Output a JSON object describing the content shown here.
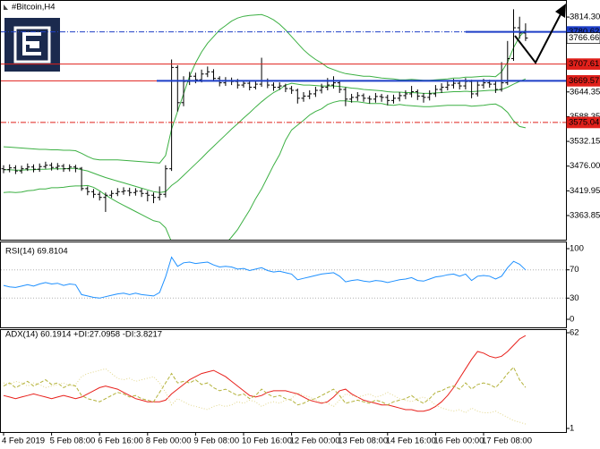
{
  "chart_data": [
    {
      "type": "ohlc",
      "title": "#Bitcoin,H4",
      "color": "#000000",
      "categories": [
        "4 Feb 2019",
        null,
        null,
        null,
        null,
        null,
        null,
        null,
        "5 Feb 08:00",
        null,
        null,
        null,
        null,
        null,
        null,
        null,
        "6 Feb 16:00",
        null,
        null,
        null,
        null,
        null,
        null,
        null,
        "8 Feb 00:00",
        null,
        null,
        null,
        null,
        null,
        null,
        null,
        "9 Feb 08:00",
        null,
        null,
        null,
        null,
        null,
        null,
        null,
        "10 Feb 16:00",
        null,
        null,
        null,
        null,
        null,
        null,
        null,
        "12 Feb 00:00",
        null,
        null,
        null,
        null,
        null,
        null,
        null,
        "13 Feb 08:00",
        null,
        null,
        null,
        null,
        null,
        null,
        null,
        "14 Feb 16:00",
        null,
        null,
        null,
        null,
        null,
        null,
        null,
        "16 Feb 00:00",
        null,
        null,
        null,
        null,
        null,
        null,
        null,
        "17 Feb 08:00",
        null,
        null,
        null,
        null,
        null,
        null,
        null
      ],
      "open": [
        3470,
        3468,
        3472,
        3465,
        3470,
        3474,
        3469,
        3475,
        3478,
        3473,
        3476,
        3470,
        3474,
        3471,
        3425,
        3418,
        3412,
        3405,
        3410,
        3414,
        3418,
        3420,
        3416,
        3419,
        3414,
        3410,
        3405,
        3412,
        3470,
        3700,
        3620,
        3668,
        3680,
        3672,
        3685,
        3690,
        3675,
        3665,
        3670,
        3668,
        3660,
        3664,
        3655,
        3662,
        3670,
        3660,
        3655,
        3658,
        3652,
        3648,
        3630,
        3635,
        3640,
        3648,
        3655,
        3660,
        3665,
        3650,
        3628,
        3632,
        3636,
        3630,
        3628,
        3634,
        3632,
        3625,
        3630,
        3636,
        3640,
        3645,
        3635,
        3632,
        3640,
        3650,
        3655,
        3660,
        3664,
        3658,
        3668,
        3640,
        3660,
        3665,
        3662,
        3650,
        3665,
        3720,
        3790,
        3778
      ],
      "high": [
        3478,
        3480,
        3478,
        3477,
        3482,
        3480,
        3482,
        3486,
        3484,
        3483,
        3481,
        3480,
        3479,
        3474,
        3430,
        3424,
        3418,
        3416,
        3421,
        3426,
        3428,
        3427,
        3426,
        3425,
        3420,
        3416,
        3430,
        3478,
        3718,
        3705,
        3680,
        3690,
        3688,
        3695,
        3702,
        3696,
        3680,
        3678,
        3677,
        3674,
        3671,
        3668,
        3670,
        3722,
        3675,
        3666,
        3666,
        3663,
        3658,
        3652,
        3644,
        3648,
        3656,
        3663,
        3676,
        3680,
        3670,
        3655,
        3640,
        3644,
        3641,
        3636,
        3642,
        3640,
        3638,
        3638,
        3644,
        3648,
        3658,
        3650,
        3642,
        3648,
        3660,
        3664,
        3668,
        3674,
        3670,
        3676,
        3672,
        3668,
        3674,
        3672,
        3668,
        3712,
        3760,
        3832,
        3815,
        3800
      ],
      "low": [
        3460,
        3462,
        3458,
        3459,
        3465,
        3462,
        3463,
        3470,
        3466,
        3467,
        3463,
        3464,
        3462,
        3420,
        3410,
        3404,
        3398,
        3372,
        3404,
        3408,
        3411,
        3408,
        3409,
        3406,
        3396,
        3392,
        3398,
        3405,
        3465,
        3600,
        3612,
        3660,
        3664,
        3666,
        3678,
        3668,
        3657,
        3658,
        3660,
        3652,
        3654,
        3648,
        3650,
        3656,
        3653,
        3647,
        3649,
        3644,
        3640,
        3618,
        3622,
        3628,
        3633,
        3641,
        3648,
        3652,
        3642,
        3612,
        3620,
        3624,
        3622,
        3618,
        3620,
        3622,
        3614,
        3618,
        3623,
        3628,
        3632,
        3626,
        3620,
        3625,
        3633,
        3642,
        3648,
        3652,
        3650,
        3650,
        3630,
        3634,
        3652,
        3654,
        3642,
        3645,
        3660,
        3715,
        3765,
        3760
      ],
      "close": [
        3468,
        3472,
        3465,
        3470,
        3474,
        3469,
        3475,
        3478,
        3473,
        3476,
        3470,
        3474,
        3471,
        3425,
        3418,
        3412,
        3405,
        3410,
        3414,
        3418,
        3420,
        3416,
        3419,
        3414,
        3410,
        3405,
        3412,
        3470,
        3700,
        3620,
        3668,
        3680,
        3672,
        3685,
        3690,
        3675,
        3665,
        3670,
        3668,
        3660,
        3664,
        3655,
        3662,
        3670,
        3660,
        3655,
        3658,
        3652,
        3648,
        3630,
        3635,
        3640,
        3648,
        3655,
        3660,
        3665,
        3650,
        3628,
        3632,
        3636,
        3630,
        3628,
        3634,
        3632,
        3625,
        3630,
        3636,
        3640,
        3645,
        3635,
        3632,
        3640,
        3650,
        3655,
        3660,
        3664,
        3658,
        3668,
        3640,
        3660,
        3665,
        3662,
        3650,
        3665,
        3720,
        3790,
        3778,
        3766.66
      ],
      "bands": [
        {
          "color": "#3cb043",
          "values": [
            3520,
            3519,
            3518,
            3517,
            3516,
            3515,
            3514,
            3514,
            3513,
            3513,
            3512,
            3512,
            3511,
            3505,
            3498,
            3492,
            3490,
            3490,
            3490,
            3490,
            3489,
            3488,
            3487,
            3486,
            3485,
            3484,
            3483,
            3500,
            3560,
            3600,
            3640,
            3680,
            3710,
            3735,
            3755,
            3770,
            3785,
            3795,
            3805,
            3812,
            3816,
            3818,
            3819,
            3820,
            3815,
            3808,
            3798,
            3785,
            3770,
            3755,
            3740,
            3728,
            3718,
            3710,
            3700,
            3695,
            3690,
            3686,
            3684,
            3682,
            3680,
            3680,
            3678,
            3676,
            3675,
            3674,
            3672,
            3672,
            3673,
            3672,
            3671,
            3671,
            3672,
            3673,
            3674,
            3676,
            3676,
            3678,
            3678,
            3679,
            3680,
            3680,
            3679,
            3690,
            3712,
            3745,
            3770,
            3785
          ]
        },
        {
          "color": "#3cb043",
          "values": [
            3468,
            3468,
            3467,
            3467,
            3468,
            3468,
            3469,
            3469,
            3470,
            3470,
            3470,
            3471,
            3471,
            3468,
            3465,
            3460,
            3455,
            3450,
            3446,
            3442,
            3438,
            3434,
            3430,
            3426,
            3422,
            3418,
            3416,
            3418,
            3432,
            3442,
            3455,
            3468,
            3481,
            3494,
            3508,
            3521,
            3534,
            3547,
            3560,
            3572,
            3585,
            3597,
            3610,
            3622,
            3633,
            3643,
            3650,
            3660,
            3664,
            3662,
            3660,
            3660,
            3659,
            3658,
            3658,
            3658,
            3657,
            3655,
            3653,
            3652,
            3650,
            3649,
            3648,
            3647,
            3645,
            3644,
            3644,
            3643,
            3643,
            3642,
            3641,
            3641,
            3642,
            3643,
            3644,
            3645,
            3645,
            3646,
            3645,
            3646,
            3647,
            3648,
            3648,
            3650,
            3655,
            3662,
            3668,
            3674
          ]
        },
        {
          "color": "#3cb043",
          "values": [
            3416,
            3417,
            3416,
            3417,
            3420,
            3421,
            3424,
            3424,
            3427,
            3427,
            3428,
            3430,
            3431,
            3431,
            3432,
            3428,
            3420,
            3410,
            3402,
            3394,
            3387,
            3380,
            3373,
            3366,
            3359,
            3352,
            3349,
            3336,
            3304,
            3284,
            3270,
            3256,
            3252,
            3253,
            3261,
            3272,
            3283,
            3299,
            3315,
            3332,
            3354,
            3376,
            3402,
            3424,
            3451,
            3478,
            3502,
            3535,
            3558,
            3569,
            3580,
            3592,
            3600,
            3606,
            3616,
            3621,
            3624,
            3624,
            3622,
            3622,
            3620,
            3618,
            3618,
            3618,
            3615,
            3614,
            3616,
            3614,
            3613,
            3612,
            3611,
            3611,
            3612,
            3613,
            3614,
            3614,
            3614,
            3614,
            3612,
            3613,
            3614,
            3616,
            3617,
            3610,
            3598,
            3579,
            3566,
            3563
          ]
        }
      ],
      "levels": [
        {
          "value": 3780.62,
          "color": "#1e3fc8",
          "style": "dashdot"
        },
        {
          "value": 3766.66,
          "color": "#ffffff",
          "style": "none"
        },
        {
          "value": 3707.61,
          "color": "#e0201b",
          "style": "solid"
        },
        {
          "value": 3669.57,
          "color": "#e0201b",
          "style": "solid"
        },
        {
          "value": 3575.04,
          "color": "#e0201b",
          "style": "dashdot"
        }
      ],
      "ylim": [
        3309,
        3853
      ],
      "yticks": [
        3363.85,
        3419.95,
        {
          "value": 3476,
          "label": "3476.00"
        },
        3532.15,
        3588.35,
        3644.35,
        {
          "value": 3814.3,
          "label": "3814.30"
        }
      ],
      "grid": false
    },
    {
      "type": "line",
      "title": "RSI(14) 69.8104",
      "series": [
        {
          "color": "#1e90ff",
          "dash": "solid",
          "values": [
            48,
            46,
            45,
            47,
            49,
            47,
            50,
            52,
            50,
            51,
            48,
            50,
            49,
            35,
            33,
            31,
            30,
            32,
            34,
            36,
            37,
            35,
            37,
            35,
            34,
            33,
            38,
            60,
            88,
            75,
            80,
            81,
            79,
            80,
            81,
            77,
            74,
            75,
            74,
            71,
            72,
            69,
            71,
            73,
            69,
            67,
            68,
            66,
            64,
            56,
            58,
            60,
            62,
            64,
            65,
            66,
            61,
            53,
            55,
            56,
            54,
            53,
            55,
            54,
            52,
            54,
            56,
            57,
            59,
            55,
            54,
            57,
            60,
            61,
            63,
            64,
            61,
            64,
            55,
            61,
            62,
            61,
            57,
            61,
            73,
            82,
            78,
            69.8104
          ]
        }
      ],
      "ylim": [
        0,
        100
      ],
      "yticks": [
        0,
        30,
        70,
        100
      ],
      "grid": true
    },
    {
      "type": "line",
      "title": "ADX(14) 60.1914 +DI:27.0958 -DI:3.8217",
      "series": [
        {
          "color": "#e8201b",
          "dash": "solid",
          "values": [
            22,
            21,
            20,
            21,
            22,
            23,
            22,
            21,
            20,
            21,
            22,
            21,
            20,
            21,
            23,
            25,
            27,
            28,
            27,
            26,
            24,
            22,
            20,
            19,
            18,
            18,
            18,
            19,
            23,
            26,
            29,
            32,
            34,
            36,
            37,
            38,
            36,
            34,
            31,
            28,
            25,
            22,
            21,
            22,
            24,
            25,
            25,
            25,
            24,
            23,
            21,
            19,
            18,
            17,
            18,
            21,
            25,
            26,
            23,
            21,
            19,
            18,
            17,
            16,
            16,
            15,
            14,
            13,
            13,
            12,
            12,
            13,
            15,
            18,
            22,
            27,
            33,
            39,
            45,
            50,
            49,
            47,
            46,
            47,
            50,
            54,
            58,
            60.1914
          ]
        },
        {
          "color": "#b3b23a",
          "dash": "dashed",
          "values": [
            28,
            30,
            27,
            29,
            31,
            28,
            30,
            32,
            29,
            30,
            27,
            29,
            28,
            22,
            20,
            19,
            18,
            20,
            22,
            24,
            23,
            21,
            22,
            20,
            19,
            18,
            24,
            30,
            36,
            30,
            31,
            30,
            32,
            29,
            30,
            27,
            25,
            26,
            24,
            22,
            23,
            20,
            22,
            26,
            23,
            21,
            22,
            20,
            19,
            16,
            17,
            19,
            20,
            22,
            24,
            26,
            22,
            17,
            18,
            19,
            18,
            17,
            19,
            18,
            16,
            18,
            19,
            20,
            22,
            19,
            17,
            20,
            24,
            25,
            27,
            28,
            26,
            30,
            26,
            29,
            30,
            29,
            27,
            31,
            36,
            40,
            32,
            27.0958
          ]
        },
        {
          "color": "#e2d78c",
          "dash": "dotted",
          "values": [
            30,
            29,
            31,
            30,
            28,
            30,
            29,
            27,
            28,
            29,
            30,
            28,
            29,
            34,
            36,
            37,
            38,
            39,
            36,
            33,
            32,
            33,
            31,
            32,
            33,
            34,
            30,
            24,
            16,
            20,
            18,
            16,
            15,
            14,
            13,
            15,
            16,
            15,
            16,
            18,
            17,
            19,
            18,
            15,
            17,
            18,
            17,
            19,
            20,
            24,
            22,
            21,
            19,
            18,
            17,
            15,
            19,
            23,
            22,
            21,
            22,
            23,
            21,
            22,
            24,
            22,
            20,
            19,
            18,
            20,
            21,
            19,
            16,
            14,
            13,
            12,
            13,
            11,
            14,
            12,
            11,
            11,
            12,
            10,
            8,
            6,
            5,
            3.8217
          ]
        }
      ],
      "ylim": [
        1,
        62
      ],
      "yticks": [
        1,
        62
      ],
      "grid": false
    }
  ]
}
